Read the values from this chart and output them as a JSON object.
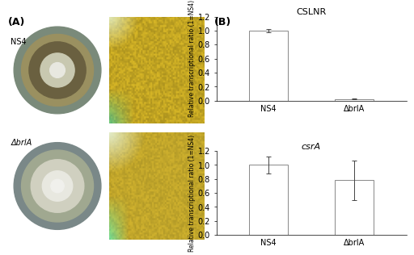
{
  "chart1": {
    "title": "CSLNR",
    "title_style": "normal",
    "categories": [
      "NS4",
      "ΔbrlA"
    ],
    "values": [
      1.0,
      0.02
    ],
    "errors": [
      0.02,
      0.005
    ],
    "ylim": [
      0,
      1.2
    ],
    "yticks": [
      0,
      0.2,
      0.4,
      0.6,
      0.8,
      1.0,
      1.2
    ],
    "ylabel": "Relative transcriptional ratio (1=NS4)",
    "bar_color": "#ffffff",
    "bar_edge_color": "#888888",
    "error_color": "#444444"
  },
  "chart2": {
    "title": "csrA",
    "title_style": "italic",
    "categories": [
      "NS4",
      "ΔbrlA"
    ],
    "values": [
      1.0,
      0.78
    ],
    "errors": [
      0.12,
      0.28
    ],
    "ylim": [
      0,
      1.2
    ],
    "yticks": [
      0,
      0.2,
      0.4,
      0.6,
      0.8,
      1.0,
      1.2
    ],
    "ylabel": "Relative transcriptional ratio (1=NS4)",
    "bar_color": "#ffffff",
    "bar_edge_color": "#888888",
    "error_color": "#444444"
  },
  "label_A": "(A)",
  "label_B": "(B)",
  "label_NS4": "NS4",
  "label_brlA": "ΔbrlA",
  "background_color": "#ffffff"
}
